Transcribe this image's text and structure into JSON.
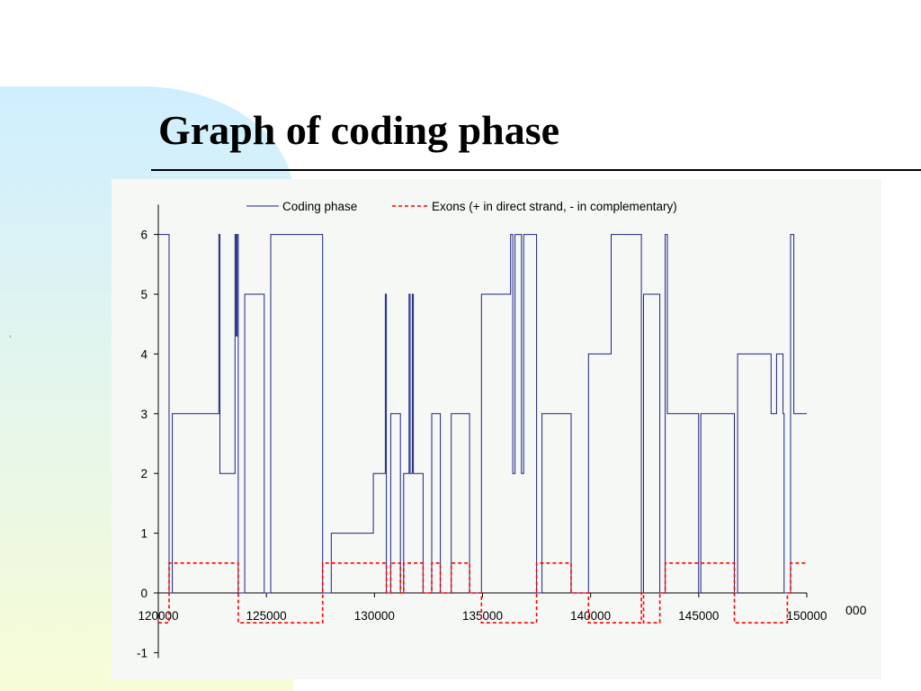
{
  "slide": {
    "title": "Graph of coding phase",
    "stray_mark": ",",
    "overflow_tick": "000"
  },
  "chart_data": {
    "type": "line",
    "xlim": [
      120000,
      150000
    ],
    "ylim": [
      -1,
      6.5
    ],
    "x_ticks": [
      120000,
      125000,
      130000,
      135000,
      140000,
      145000,
      150000
    ],
    "y_ticks": [
      -1,
      0,
      1,
      2,
      3,
      4,
      5,
      6
    ],
    "grid": false,
    "legend": "top",
    "colors": {
      "phase": "#1a237e",
      "exons": "#ff0000"
    },
    "series": [
      {
        "name": "Coding phase",
        "style": "solid",
        "points": [
          [
            120000,
            6
          ],
          [
            120500,
            6
          ],
          [
            120500,
            0
          ],
          [
            120650,
            0
          ],
          [
            120650,
            3
          ],
          [
            122800,
            3
          ],
          [
            122800,
            6
          ],
          [
            122850,
            6
          ],
          [
            122850,
            2
          ],
          [
            123550,
            2
          ],
          [
            123550,
            6
          ],
          [
            123600,
            6
          ],
          [
            123600,
            4.3
          ],
          [
            123650,
            4.3
          ],
          [
            123650,
            6
          ],
          [
            123700,
            6
          ],
          [
            123700,
            0
          ],
          [
            124000,
            0
          ],
          [
            124000,
            5
          ],
          [
            124900,
            5
          ],
          [
            124900,
            0
          ],
          [
            125200,
            0
          ],
          [
            125200,
            6
          ],
          [
            127600,
            6
          ],
          [
            127600,
            0
          ],
          [
            128000,
            0
          ],
          [
            128000,
            1
          ],
          [
            129950,
            1
          ],
          [
            129950,
            2
          ],
          [
            130500,
            2
          ],
          [
            130500,
            5
          ],
          [
            130550,
            5
          ],
          [
            130550,
            0
          ],
          [
            130750,
            0
          ],
          [
            130750,
            3
          ],
          [
            131200,
            3
          ],
          [
            131200,
            0
          ],
          [
            131350,
            0
          ],
          [
            131350,
            2
          ],
          [
            131600,
            2
          ],
          [
            131600,
            5
          ],
          [
            131650,
            5
          ],
          [
            131650,
            2
          ],
          [
            131750,
            2
          ],
          [
            131750,
            5
          ],
          [
            131800,
            5
          ],
          [
            131800,
            2
          ],
          [
            132250,
            2
          ],
          [
            132250,
            0
          ],
          [
            132650,
            0
          ],
          [
            132650,
            3
          ],
          [
            133050,
            3
          ],
          [
            133050,
            0
          ],
          [
            133550,
            0
          ],
          [
            133550,
            3
          ],
          [
            134400,
            3
          ],
          [
            134400,
            0
          ],
          [
            134950,
            0
          ],
          [
            134950,
            5
          ],
          [
            136300,
            5
          ],
          [
            136300,
            6
          ],
          [
            136400,
            6
          ],
          [
            136400,
            2
          ],
          [
            136500,
            2
          ],
          [
            136500,
            6
          ],
          [
            136800,
            6
          ],
          [
            136800,
            2
          ],
          [
            136900,
            2
          ],
          [
            136900,
            6
          ],
          [
            137500,
            6
          ],
          [
            137500,
            0
          ],
          [
            137750,
            0
          ],
          [
            137750,
            3
          ],
          [
            139100,
            3
          ],
          [
            139100,
            0
          ],
          [
            139900,
            0
          ],
          [
            139900,
            4
          ],
          [
            140950,
            4
          ],
          [
            140950,
            6
          ],
          [
            142350,
            6
          ],
          [
            142350,
            0
          ],
          [
            142450,
            0
          ],
          [
            142450,
            5
          ],
          [
            143200,
            5
          ],
          [
            143200,
            0
          ],
          [
            143450,
            0
          ],
          [
            143450,
            6
          ],
          [
            143550,
            6
          ],
          [
            143550,
            3
          ],
          [
            145000,
            3
          ],
          [
            145000,
            0
          ],
          [
            145100,
            0
          ],
          [
            145100,
            3
          ],
          [
            146650,
            3
          ],
          [
            146650,
            0
          ],
          [
            146800,
            0
          ],
          [
            146800,
            4
          ],
          [
            148350,
            4
          ],
          [
            148350,
            3
          ],
          [
            148600,
            3
          ],
          [
            148600,
            4
          ],
          [
            148900,
            4
          ],
          [
            148900,
            3
          ],
          [
            148950,
            3
          ],
          [
            148950,
            0
          ],
          [
            149250,
            0
          ],
          [
            149250,
            6
          ],
          [
            149400,
            6
          ],
          [
            149400,
            3
          ],
          [
            150000,
            3
          ]
        ]
      },
      {
        "name": "Exons (+ in direct strand, - in complementary)",
        "style": "dashed",
        "points": [
          [
            120000,
            -0.5
          ],
          [
            120500,
            -0.5
          ],
          [
            120500,
            0.5
          ],
          [
            123700,
            0.5
          ],
          [
            123700,
            -0.5
          ],
          [
            127600,
            -0.5
          ],
          [
            127600,
            0.5
          ],
          [
            130550,
            0.5
          ],
          [
            130550,
            0
          ],
          [
            130750,
            0
          ],
          [
            130750,
            0.5
          ],
          [
            131200,
            0.5
          ],
          [
            131200,
            0
          ],
          [
            131350,
            0
          ],
          [
            131350,
            0.5
          ],
          [
            132250,
            0.5
          ],
          [
            132250,
            0
          ],
          [
            132650,
            0
          ],
          [
            132650,
            0.5
          ],
          [
            133050,
            0.5
          ],
          [
            133050,
            0
          ],
          [
            133550,
            0
          ],
          [
            133550,
            0.5
          ],
          [
            134400,
            0.5
          ],
          [
            134400,
            0
          ],
          [
            134950,
            0
          ],
          [
            134950,
            -0.5
          ],
          [
            137500,
            -0.5
          ],
          [
            137500,
            0.5
          ],
          [
            139100,
            0.5
          ],
          [
            139100,
            0
          ],
          [
            139900,
            0
          ],
          [
            139900,
            -0.5
          ],
          [
            142350,
            -0.5
          ],
          [
            142350,
            0
          ],
          [
            142450,
            0
          ],
          [
            142450,
            -0.5
          ],
          [
            143200,
            -0.5
          ],
          [
            143200,
            0
          ],
          [
            143450,
            0
          ],
          [
            143450,
            0.5
          ],
          [
            146650,
            0.5
          ],
          [
            146650,
            -0.5
          ],
          [
            149100,
            -0.5
          ],
          [
            149100,
            0
          ],
          [
            149250,
            0
          ],
          [
            149250,
            0.5
          ],
          [
            150000,
            0.5
          ]
        ]
      }
    ]
  }
}
